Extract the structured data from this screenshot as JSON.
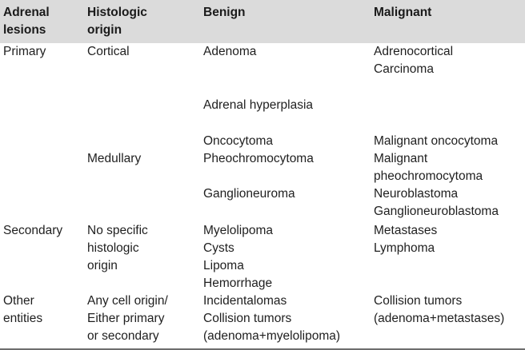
{
  "table": {
    "headers": [
      "Adrenal\nlesions",
      "Histologic\norigin",
      "Benign",
      "Malignant"
    ],
    "rows": {
      "r1": {
        "lesion": "Primary",
        "origin": "Cortical",
        "benign": "Adenoma",
        "malignant_1": "Adrenocortical",
        "malignant_2": "Carcinoma"
      },
      "r2": {
        "benign": "Adrenal hyperplasia"
      },
      "r3": {
        "benign": "Oncocytoma",
        "malignant": "Malignant oncocytoma"
      },
      "r4": {
        "origin": "Medullary",
        "benign": "Pheochromocytoma",
        "malignant_1": "Malignant",
        "malignant_2": "pheochromocytoma"
      },
      "r5": {
        "benign": "Ganglioneuroma",
        "malignant_1": "Neuroblastoma",
        "malignant_2": "Ganglioneuroblastoma"
      },
      "r6": {
        "lesion": "Secondary",
        "origin_1": "No specific",
        "origin_2": "histologic",
        "origin_3": "origin",
        "benign_1": "Myelolipoma",
        "benign_2": "Cysts",
        "benign_3": "Lipoma",
        "benign_4": "Hemorrhage",
        "malignant_1": "Metastases",
        "malignant_2": "Lymphoma"
      },
      "r7": {
        "lesion_1": "Other",
        "lesion_2": "entities",
        "origin_1": "Any cell origin/",
        "origin_2": "Either primary",
        "origin_3": "or secondary",
        "benign_1": "Incidentalomas",
        "benign_2": "Collision tumors",
        "benign_3": "(adenoma+myelolipoma)",
        "malignant_1": "Collision tumors",
        "malignant_2": "(adenoma+metastases)"
      }
    }
  }
}
